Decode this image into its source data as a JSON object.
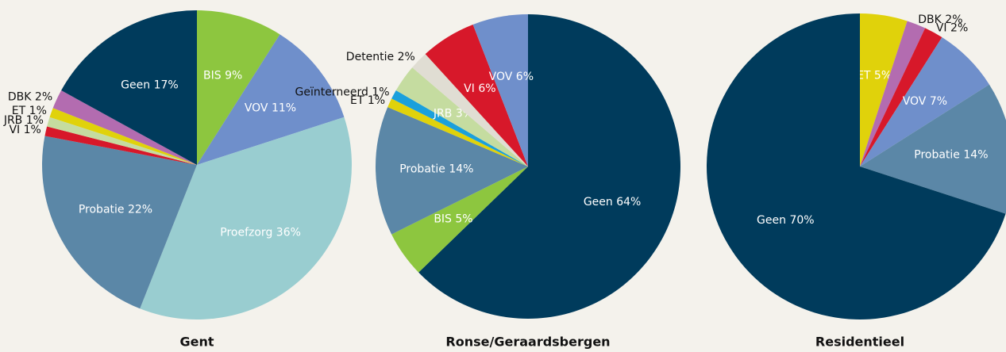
{
  "chart_data": [
    {
      "type": "pie",
      "title": "Gent",
      "categories": [
        "BIS",
        "VOV",
        "Proefzorg",
        "Probatie",
        "VI",
        "JRB",
        "ET",
        "DBK",
        "Geen"
      ],
      "values": [
        9,
        11,
        36,
        22,
        1,
        1,
        1,
        2,
        17
      ],
      "value_labels": [
        "9%",
        "11%",
        "36%",
        "22%",
        "1%",
        "1%",
        "1%",
        "2%",
        "17%"
      ],
      "colors": [
        "#8dc63f",
        "#6f8fcb",
        "#99cdd0",
        "#5b87a7",
        "#d7182a",
        "#c5dca0",
        "#e0d20b",
        "#b36cb0",
        "#003b5c"
      ]
    },
    {
      "type": "pie",
      "title": "Ronse/Geraardsbergen",
      "categories": [
        "Geen",
        "BIS",
        "Probatie",
        "ET",
        "Geïnterneerd",
        "JRB",
        "Detentie",
        "VI",
        "VOV"
      ],
      "values": [
        64,
        5,
        14,
        1,
        1,
        3,
        2,
        6,
        6
      ],
      "value_labels": [
        "64%",
        "5%",
        "14%",
        "1%",
        "1%",
        "3%",
        "2%",
        "6%",
        "6%"
      ],
      "colors": [
        "#003b5c",
        "#8dc63f",
        "#5b87a7",
        "#e0d20b",
        "#1aa0dc",
        "#c5dca0",
        "#e0ddd3",
        "#d7182a",
        "#6f8fcb"
      ]
    },
    {
      "type": "pie",
      "title": "Residentieel",
      "categories": [
        "ET",
        "DBK",
        "VI",
        "VOV",
        "Probatie",
        "Geen"
      ],
      "values": [
        5,
        2,
        2,
        7,
        14,
        70
      ],
      "value_labels": [
        "5%",
        "2%",
        "2%",
        "7%",
        "14%",
        "70%"
      ],
      "colors": [
        "#e0d20b",
        "#b36cb0",
        "#d7182a",
        "#6f8fcb",
        "#5b87a7",
        "#003b5c"
      ]
    }
  ]
}
